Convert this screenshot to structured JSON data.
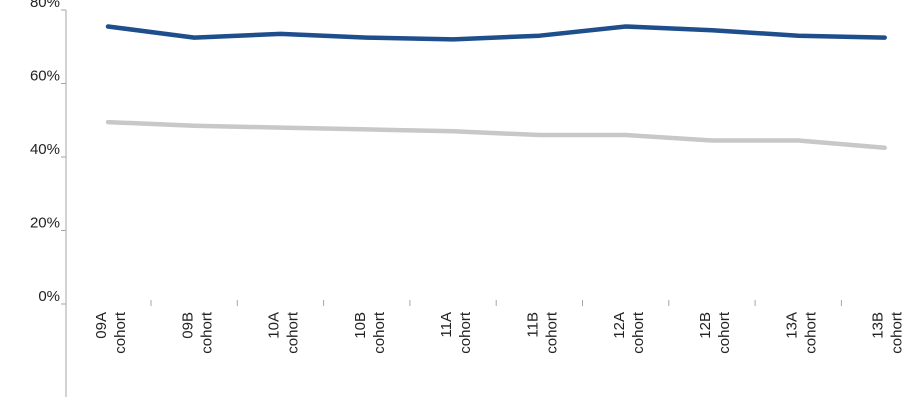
{
  "chart_data": {
    "type": "line",
    "categories": [
      [
        "09A",
        "cohort"
      ],
      [
        "09B",
        "cohort"
      ],
      [
        "10A",
        "cohort"
      ],
      [
        "10B",
        "cohort"
      ],
      [
        "11A",
        "cohort"
      ],
      [
        "11B",
        "cohort"
      ],
      [
        "12A",
        "cohort"
      ],
      [
        "12B",
        "cohort"
      ],
      [
        "13A",
        "cohort"
      ],
      [
        "13B",
        "cohort"
      ]
    ],
    "series": [
      {
        "color": "#1f4e8c",
        "values": [
          75.5,
          72.5,
          73.5,
          72.5,
          72.0,
          73.0,
          75.5,
          74.5,
          73.0,
          72.5
        ]
      },
      {
        "color": "#c8c8c8",
        "values": [
          49.5,
          48.5,
          48.0,
          47.5,
          47.0,
          46.0,
          46.0,
          44.5,
          44.5,
          42.5
        ]
      }
    ],
    "y_ticks": [
      "0%",
      "20%",
      "40%",
      "60%",
      "80%"
    ],
    "ylim": [
      0,
      80
    ],
    "grid": false
  }
}
